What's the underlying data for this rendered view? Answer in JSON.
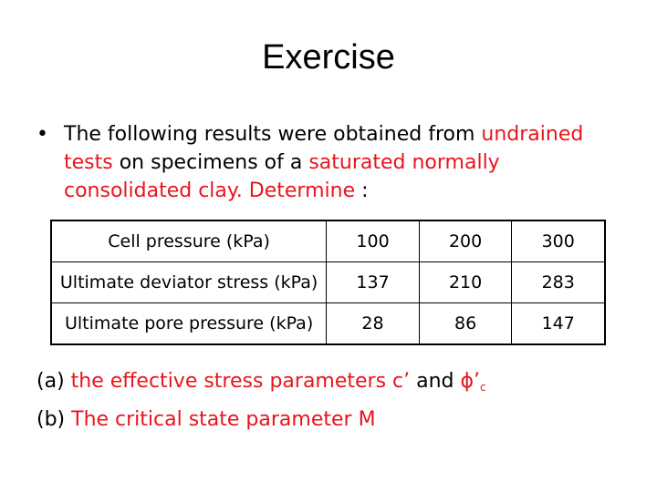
{
  "slide": {
    "title": "Exercise",
    "bullet": {
      "symbol": "•",
      "segments": [
        {
          "text": "The following results were obtained from ",
          "color": "#000000"
        },
        {
          "text": "undrained tests",
          "color": "#e8141e"
        },
        {
          "text": " on specimens of a ",
          "color": "#000000"
        },
        {
          "text": "saturated normally consolidated clay.",
          "color": "#e8141e"
        },
        {
          "text": " ",
          "color": "#000000"
        },
        {
          "text": "Determine",
          "color": "#e8141e"
        },
        {
          "text": " :",
          "color": "#000000"
        }
      ]
    },
    "table": {
      "rows": [
        {
          "label": "Cell pressure (kPa)",
          "values": [
            "100",
            "200",
            "300"
          ]
        },
        {
          "label": "Ultimate deviator stress (kPa)",
          "values": [
            "137",
            "210",
            "283"
          ]
        },
        {
          "label": "Ultimate pore pressure (kPa)",
          "values": [
            "28",
            "86",
            "147"
          ]
        }
      ]
    },
    "answers": {
      "a_prefix": "(a) ",
      "a_text": "the effective stress parameters c’",
      "a_and": " and ",
      "a_phi": "ϕ’",
      "a_sub": "c",
      "b_prefix": "(b) ",
      "b_text": "The critical state parameter M"
    },
    "accent_color": "#e8141e"
  }
}
